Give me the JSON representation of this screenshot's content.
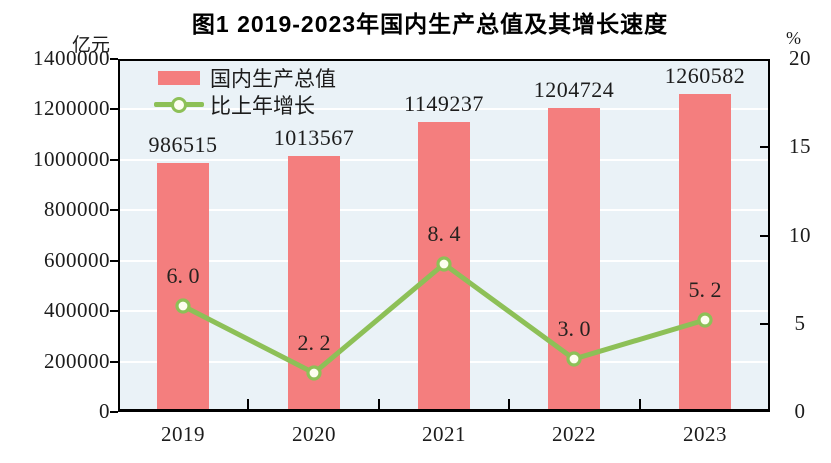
{
  "title": "图1  2019-2023年国内生产总值及其增长速度",
  "axes": {
    "left_unit": "亿元",
    "right_unit": "%",
    "left_ticks": [
      "1400000",
      "1200000",
      "1000000",
      "800000",
      "600000",
      "400000",
      "200000",
      "0"
    ],
    "right_ticks": [
      "20",
      "15",
      "10",
      "5",
      "0"
    ]
  },
  "legend": [
    {
      "label": "国内生产总值",
      "type": "bar"
    },
    {
      "label": "比上年增长",
      "type": "line"
    }
  ],
  "colors": {
    "bar": "#F47E7E",
    "line": "#8DC057",
    "marker_fill": "#FDFEF0",
    "plot_bg": "#EAF2F7",
    "grid": "#FFFFFF",
    "axis": "#000000",
    "text": "#1C1C1C"
  },
  "chart_data": {
    "type": "bar",
    "title": "图1 2019-2023年国内生产总值及其增长速度",
    "categories": [
      "2019",
      "2020",
      "2021",
      "2022",
      "2023"
    ],
    "series": [
      {
        "name": "国内生产总值",
        "type": "bar",
        "axis": "left",
        "unit": "亿元",
        "values": [
          986515,
          1013567,
          1149237,
          1204724,
          1260582
        ],
        "labels": [
          "986515",
          "1013567",
          "1149237",
          "1204724",
          "1260582"
        ]
      },
      {
        "name": "比上年增长",
        "type": "line",
        "axis": "right",
        "unit": "%",
        "values": [
          6.0,
          2.2,
          8.4,
          3.0,
          5.2
        ],
        "labels": [
          "6. 0",
          "2. 2",
          "8. 4",
          "3. 0",
          "5. 2"
        ]
      }
    ],
    "left_axis": {
      "label": "亿元",
      "min": 0,
      "max": 1400000,
      "step": 200000
    },
    "right_axis": {
      "label": "%",
      "min": 0,
      "max": 20,
      "step": 5
    },
    "grid": true,
    "legend_position": "top-left-inside"
  }
}
